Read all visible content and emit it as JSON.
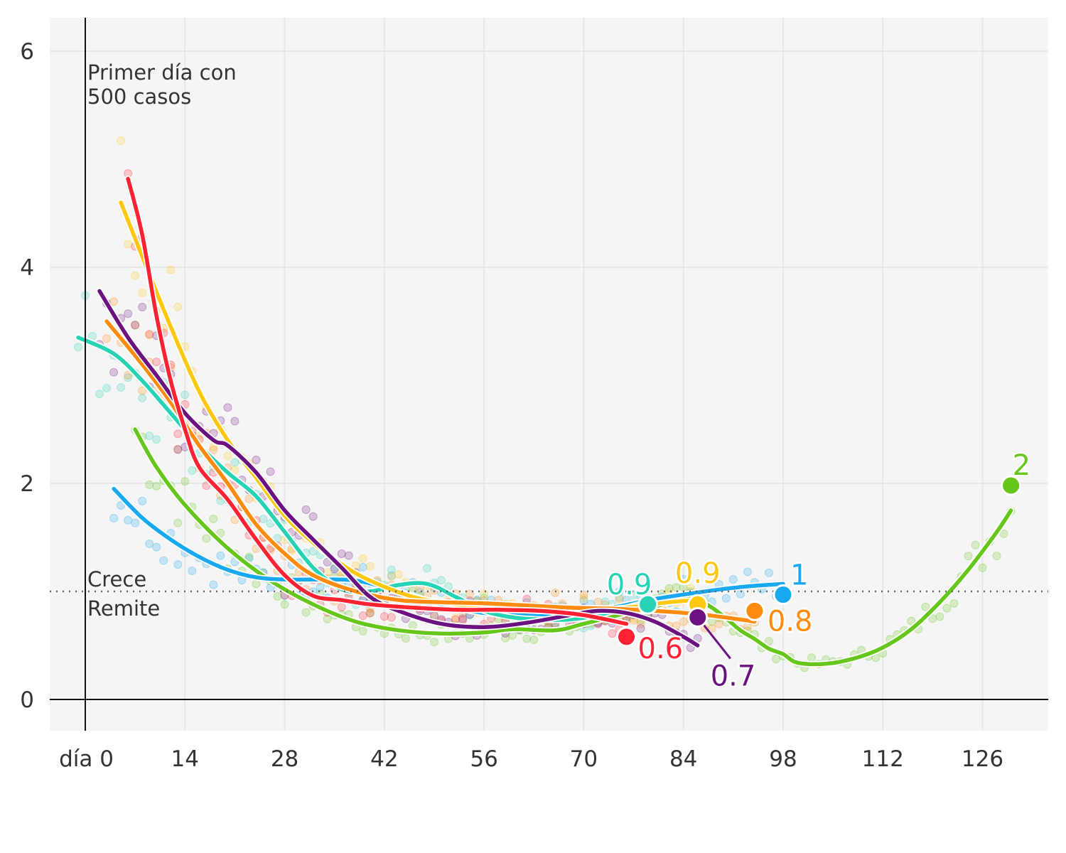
{
  "chart_data": {
    "type": "line",
    "title": "",
    "xlabel": "",
    "ylabel": "",
    "x_ticks": [
      0,
      14,
      28,
      42,
      56,
      70,
      84,
      98,
      112,
      126
    ],
    "x_tick_labels": [
      "día 0",
      "14",
      "28",
      "42",
      "56",
      "70",
      "84",
      "98",
      "112",
      "126"
    ],
    "x_axis_prefix": "día",
    "y_ticks": [
      0,
      2,
      4,
      6
    ],
    "y_tick_labels": [
      "0",
      "2",
      "4",
      "6"
    ],
    "xlim": [
      -5,
      135
    ],
    "ylim": [
      -0.3,
      6.3
    ],
    "grid": true,
    "reference_line": {
      "y": 1,
      "label_above": "Crece",
      "label_below": "Remite"
    },
    "annotation": {
      "x": 0,
      "lines": [
        "Primer día con",
        "500 casos"
      ]
    },
    "series": [
      {
        "name": "verde",
        "color": "#66c61c",
        "end_label": "2",
        "x": [
          7,
          10,
          14,
          20,
          26,
          32,
          38,
          44,
          50,
          56,
          60,
          66,
          70,
          76,
          80,
          84,
          86,
          88,
          90,
          92,
          94,
          96,
          98,
          100,
          104,
          108,
          112,
          116,
          120,
          124,
          128,
          130
        ],
        "values": [
          2.5,
          2.15,
          1.8,
          1.4,
          1.1,
          0.88,
          0.72,
          0.64,
          0.61,
          0.62,
          0.65,
          0.64,
          0.7,
          0.8,
          0.86,
          0.93,
          0.92,
          0.85,
          0.75,
          0.64,
          0.56,
          0.47,
          0.42,
          0.34,
          0.33,
          0.38,
          0.48,
          0.65,
          0.9,
          1.2,
          1.55,
          1.75
        ],
        "end": {
          "x": 130,
          "y": 1.98
        }
      },
      {
        "name": "azul",
        "color": "#18a9f0",
        "end_label": "1",
        "x": [
          4,
          8,
          12,
          16,
          20,
          24,
          28,
          32,
          38,
          44,
          50,
          56,
          62,
          68,
          74,
          80,
          86,
          92,
          98
        ],
        "values": [
          1.95,
          1.68,
          1.48,
          1.32,
          1.2,
          1.13,
          1.11,
          1.11,
          1.1,
          1.0,
          0.88,
          0.8,
          0.78,
          0.8,
          0.85,
          0.93,
          0.99,
          1.04,
          1.07
        ],
        "end": {
          "x": 98,
          "y": 0.97
        }
      },
      {
        "name": "turquesa",
        "color": "#27d3b5",
        "end_label": "0.9",
        "x": [
          -1,
          4,
          8,
          12,
          16,
          20,
          24,
          28,
          32,
          36,
          40,
          44,
          48,
          52,
          56,
          60,
          64,
          68,
          72,
          76,
          79
        ],
        "values": [
          3.35,
          3.2,
          2.95,
          2.65,
          2.35,
          2.1,
          1.88,
          1.55,
          1.22,
          1.02,
          1.0,
          1.06,
          1.07,
          0.95,
          0.82,
          0.76,
          0.74,
          0.74,
          0.78,
          0.85,
          0.9
        ],
        "end": {
          "x": 79,
          "y": 0.88
        }
      },
      {
        "name": "amarillo",
        "color": "#ffc810",
        "end_label": "0.9",
        "x": [
          5,
          8,
          12,
          16,
          20,
          24,
          28,
          32,
          36,
          40,
          46,
          52,
          58,
          64,
          70,
          76,
          82,
          86
        ],
        "values": [
          4.6,
          4.1,
          3.45,
          2.85,
          2.4,
          2.05,
          1.7,
          1.45,
          1.25,
          1.1,
          0.95,
          0.88,
          0.84,
          0.82,
          0.82,
          0.85,
          0.9,
          0.92
        ],
        "end": {
          "x": 86,
          "y": 0.88
        }
      },
      {
        "name": "naranja",
        "color": "#ff8c10",
        "end_label": "0.8",
        "x": [
          3,
          8,
          12,
          16,
          20,
          24,
          28,
          32,
          38,
          44,
          50,
          56,
          62,
          68,
          74,
          80,
          86,
          92,
          94
        ],
        "values": [
          3.5,
          3.1,
          2.75,
          2.35,
          2.0,
          1.62,
          1.35,
          1.15,
          1.0,
          0.92,
          0.9,
          0.89,
          0.87,
          0.85,
          0.84,
          0.82,
          0.79,
          0.74,
          0.72
        ],
        "end": {
          "x": 94,
          "y": 0.82
        }
      },
      {
        "name": "morado",
        "color": "#6c1280",
        "end_label": "0.7",
        "x": [
          2,
          6,
          10,
          14,
          18,
          20,
          24,
          28,
          32,
          36,
          40,
          44,
          50,
          56,
          62,
          68,
          72,
          76,
          80,
          84,
          86
        ],
        "values": [
          3.78,
          3.35,
          3.0,
          2.65,
          2.4,
          2.35,
          2.1,
          1.75,
          1.48,
          1.22,
          0.95,
          0.82,
          0.7,
          0.67,
          0.71,
          0.78,
          0.82,
          0.8,
          0.72,
          0.58,
          0.5
        ],
        "end": {
          "x": 86,
          "y": 0.76
        }
      },
      {
        "name": "rojo",
        "color": "#ff2233",
        "end_label": "0.6",
        "x": [
          6,
          8,
          10,
          12,
          14,
          16,
          20,
          24,
          28,
          32,
          36,
          40,
          46,
          52,
          58,
          64,
          70,
          76
        ],
        "values": [
          4.82,
          4.3,
          3.55,
          2.95,
          2.5,
          2.15,
          1.85,
          1.48,
          1.15,
          0.96,
          0.92,
          0.88,
          0.85,
          0.83,
          0.83,
          0.82,
          0.78,
          0.7
        ],
        "end": {
          "x": 76,
          "y": 0.58
        }
      }
    ]
  }
}
